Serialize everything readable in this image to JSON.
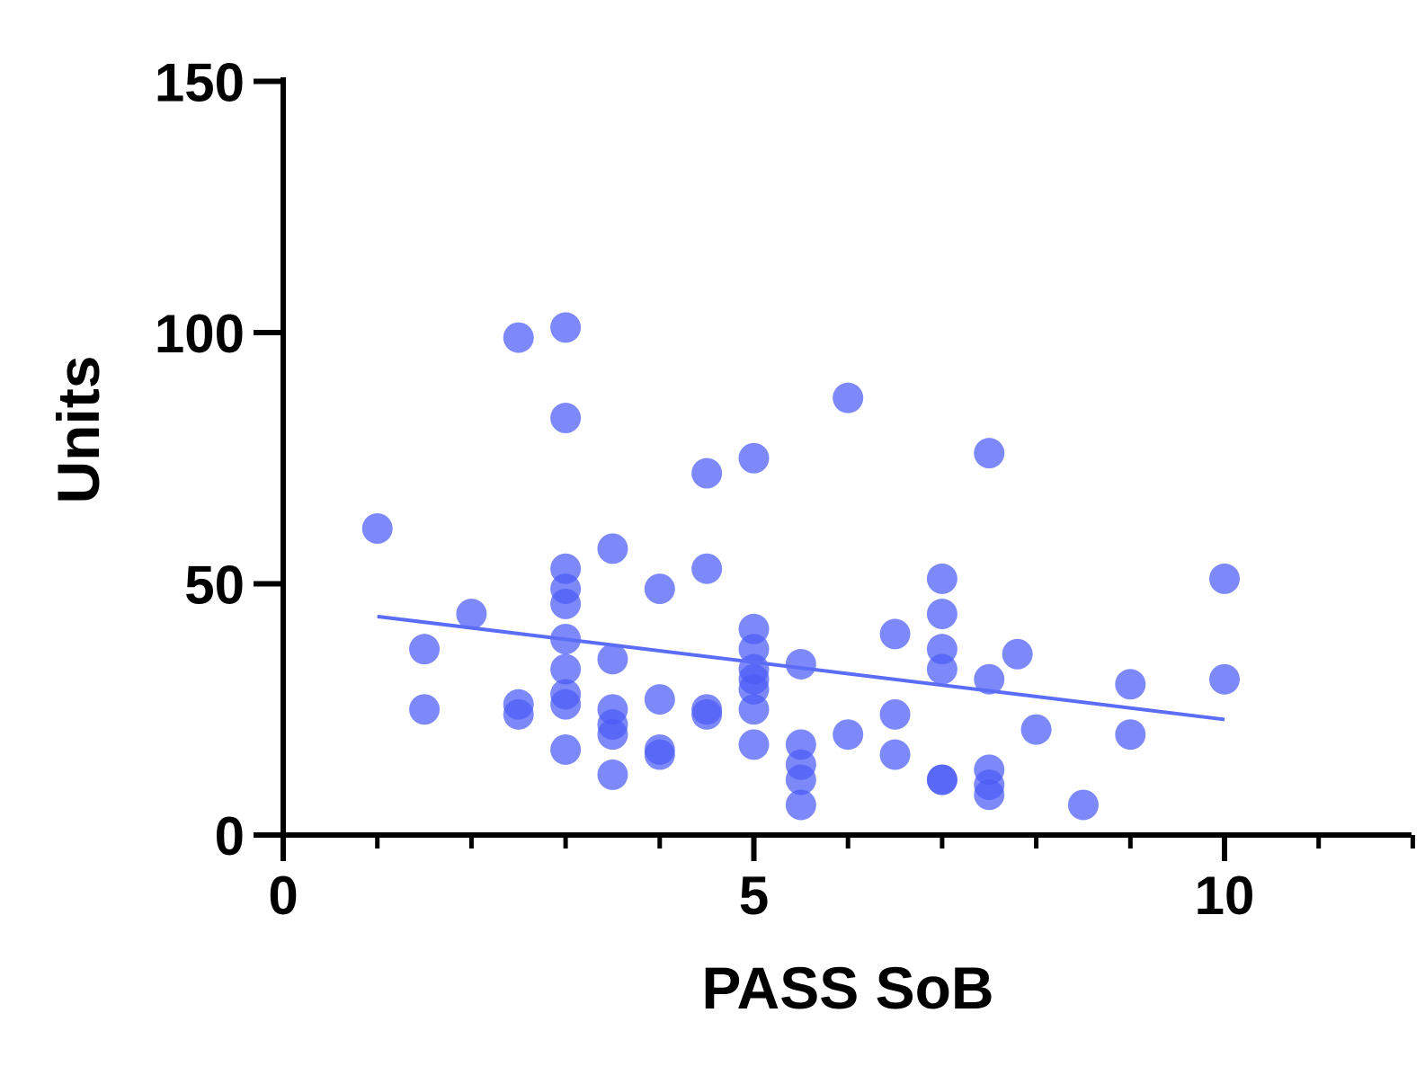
{
  "chart_data": {
    "type": "scatter",
    "xlabel": "PASS SoB",
    "ylabel": "Units",
    "xlim": [
      0,
      12
    ],
    "ylim": [
      0,
      150
    ],
    "x_ticks": [
      0,
      5,
      10
    ],
    "x_minor_ticks": [
      1,
      2,
      3,
      4,
      6,
      7,
      8,
      9,
      11,
      12
    ],
    "y_ticks": [
      0,
      50,
      100,
      150
    ],
    "grid": false,
    "point_color": "#4B5CF5",
    "line_color": "#5B6CF7",
    "points": [
      {
        "x": 1,
        "y": 61
      },
      {
        "x": 1.5,
        "y": 37
      },
      {
        "x": 1.5,
        "y": 25
      },
      {
        "x": 2,
        "y": 44
      },
      {
        "x": 2.5,
        "y": 99
      },
      {
        "x": 2.5,
        "y": 26
      },
      {
        "x": 2.5,
        "y": 24
      },
      {
        "x": 3,
        "y": 101
      },
      {
        "x": 3,
        "y": 83
      },
      {
        "x": 3,
        "y": 53
      },
      {
        "x": 3,
        "y": 49
      },
      {
        "x": 3,
        "y": 46
      },
      {
        "x": 3,
        "y": 39
      },
      {
        "x": 3,
        "y": 33
      },
      {
        "x": 3,
        "y": 28
      },
      {
        "x": 3,
        "y": 26
      },
      {
        "x": 3,
        "y": 17
      },
      {
        "x": 3.5,
        "y": 57
      },
      {
        "x": 3.5,
        "y": 35
      },
      {
        "x": 3.5,
        "y": 25
      },
      {
        "x": 3.5,
        "y": 22
      },
      {
        "x": 3.5,
        "y": 20
      },
      {
        "x": 3.5,
        "y": 12
      },
      {
        "x": 4,
        "y": 49
      },
      {
        "x": 4,
        "y": 27
      },
      {
        "x": 4,
        "y": 17
      },
      {
        "x": 4,
        "y": 16
      },
      {
        "x": 4.5,
        "y": 72
      },
      {
        "x": 4.5,
        "y": 53
      },
      {
        "x": 4.5,
        "y": 25
      },
      {
        "x": 4.5,
        "y": 24
      },
      {
        "x": 5,
        "y": 75
      },
      {
        "x": 5,
        "y": 41
      },
      {
        "x": 5,
        "y": 37
      },
      {
        "x": 5,
        "y": 33
      },
      {
        "x": 5,
        "y": 31
      },
      {
        "x": 5,
        "y": 29
      },
      {
        "x": 5,
        "y": 25
      },
      {
        "x": 5,
        "y": 18
      },
      {
        "x": 5.5,
        "y": 34
      },
      {
        "x": 5.5,
        "y": 18
      },
      {
        "x": 5.5,
        "y": 14
      },
      {
        "x": 5.5,
        "y": 11
      },
      {
        "x": 5.5,
        "y": 6
      },
      {
        "x": 6,
        "y": 87
      },
      {
        "x": 6,
        "y": 20
      },
      {
        "x": 6.5,
        "y": 40
      },
      {
        "x": 6.5,
        "y": 24
      },
      {
        "x": 6.5,
        "y": 16
      },
      {
        "x": 7,
        "y": 51
      },
      {
        "x": 7,
        "y": 44
      },
      {
        "x": 7,
        "y": 37
      },
      {
        "x": 7,
        "y": 33
      },
      {
        "x": 7,
        "y": 11
      },
      {
        "x": 7,
        "y": 11
      },
      {
        "x": 7.5,
        "y": 76
      },
      {
        "x": 7.5,
        "y": 31
      },
      {
        "x": 7.5,
        "y": 13
      },
      {
        "x": 7.5,
        "y": 10
      },
      {
        "x": 7.5,
        "y": 8
      },
      {
        "x": 7.8,
        "y": 36
      },
      {
        "x": 8,
        "y": 21
      },
      {
        "x": 8.5,
        "y": 6
      },
      {
        "x": 9,
        "y": 30
      },
      {
        "x": 9,
        "y": 20
      },
      {
        "x": 10,
        "y": 51
      },
      {
        "x": 10,
        "y": 31
      }
    ],
    "trendline": {
      "x": [
        1,
        10
      ],
      "y": [
        43.5,
        23
      ]
    }
  }
}
